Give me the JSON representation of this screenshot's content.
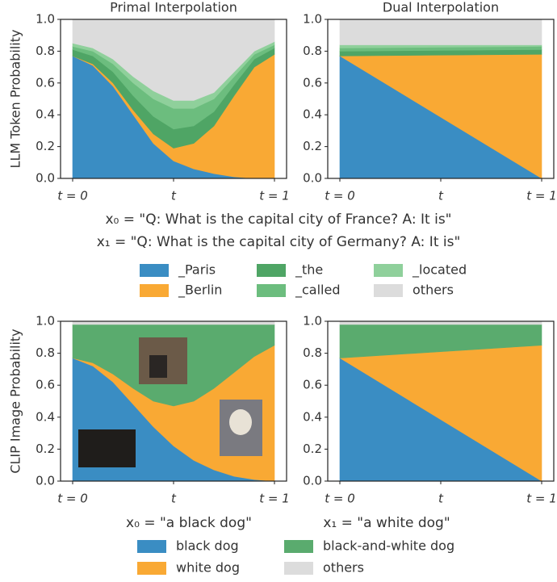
{
  "chart_data": [
    {
      "type": "area",
      "title": "Primal Interpolation",
      "ylabel": "LLM Token Probability",
      "legend": "below",
      "x": [
        0,
        0.1,
        0.2,
        0.3,
        0.4,
        0.5,
        0.6,
        0.7,
        0.8,
        0.9,
        1
      ],
      "xlim": [
        -0.06,
        1.06
      ],
      "ylim": [
        0,
        1
      ],
      "xticks": [
        {
          "value": 0,
          "label": "t = 0"
        },
        {
          "value": 0.5,
          "label": "t"
        },
        {
          "value": 1,
          "label": "t = 1"
        }
      ],
      "yticks": [
        {
          "value": 0,
          "label": "0.0"
        },
        {
          "value": 0.2,
          "label": "0.2"
        },
        {
          "value": 0.4,
          "label": "0.4"
        },
        {
          "value": 0.6,
          "label": "0.6"
        },
        {
          "value": 0.8,
          "label": "0.8"
        },
        {
          "value": 1,
          "label": "1.0"
        }
      ],
      "series": [
        {
          "name": "_Paris",
          "color": "#3a8dc3",
          "values": [
            0.77,
            0.71,
            0.58,
            0.4,
            0.22,
            0.11,
            0.06,
            0.03,
            0.01,
            0.0,
            0.0
          ]
        },
        {
          "name": "_Berlin",
          "color": "#f9a934",
          "values": [
            0.0,
            0.01,
            0.02,
            0.03,
            0.06,
            0.08,
            0.16,
            0.3,
            0.51,
            0.7,
            0.78
          ]
        },
        {
          "name": "_the",
          "color": "#4fa565",
          "values": [
            0.04,
            0.05,
            0.07,
            0.09,
            0.11,
            0.12,
            0.11,
            0.09,
            0.07,
            0.05,
            0.04
          ]
        },
        {
          "name": "_called",
          "color": "#6cbd7e",
          "values": [
            0.02,
            0.03,
            0.05,
            0.08,
            0.11,
            0.13,
            0.11,
            0.08,
            0.05,
            0.03,
            0.02
          ]
        },
        {
          "name": "_located",
          "color": "#8fd09b",
          "values": [
            0.02,
            0.02,
            0.03,
            0.04,
            0.05,
            0.05,
            0.05,
            0.04,
            0.03,
            0.02,
            0.02
          ]
        },
        {
          "name": "others",
          "color": "#dcdcdc",
          "values": [
            0.15,
            0.18,
            0.25,
            0.36,
            0.45,
            0.51,
            0.51,
            0.46,
            0.33,
            0.2,
            0.14
          ]
        }
      ]
    },
    {
      "type": "area",
      "title": "Dual Interpolation",
      "x": [
        0,
        1
      ],
      "xlim": [
        -0.06,
        1.06
      ],
      "ylim": [
        0,
        1
      ],
      "xticks": [
        {
          "value": 0,
          "label": "t = 0"
        },
        {
          "value": 0.5,
          "label": "t"
        },
        {
          "value": 1,
          "label": "t = 1"
        }
      ],
      "yticks": [
        {
          "value": 0,
          "label": "0.0"
        },
        {
          "value": 0.2,
          "label": "0.2"
        },
        {
          "value": 0.4,
          "label": "0.4"
        },
        {
          "value": 0.6,
          "label": "0.6"
        },
        {
          "value": 0.8,
          "label": "0.8"
        },
        {
          "value": 1,
          "label": "1.0"
        }
      ],
      "series": [
        {
          "name": "_Paris",
          "color": "#3a8dc3",
          "values": [
            0.77,
            0.0
          ]
        },
        {
          "name": "_Berlin",
          "color": "#f9a934",
          "values": [
            0.0,
            0.78
          ]
        },
        {
          "name": "_the",
          "color": "#4fa565",
          "values": [
            0.03,
            0.03
          ]
        },
        {
          "name": "_called",
          "color": "#6cbd7e",
          "values": [
            0.02,
            0.02
          ]
        },
        {
          "name": "_located",
          "color": "#8fd09b",
          "values": [
            0.02,
            0.01
          ]
        },
        {
          "name": "others",
          "color": "#dcdcdc",
          "values": [
            0.16,
            0.16
          ]
        }
      ]
    },
    {
      "type": "area",
      "ylabel": "CLIP Image Probability",
      "legend": "below",
      "x": [
        0,
        0.1,
        0.2,
        0.3,
        0.4,
        0.5,
        0.6,
        0.7,
        0.8,
        0.9,
        1
      ],
      "xlim": [
        -0.06,
        1.06
      ],
      "ylim": [
        0,
        1
      ],
      "xticks": [
        {
          "value": 0,
          "label": "t = 0"
        },
        {
          "value": 0.5,
          "label": "t"
        },
        {
          "value": 1,
          "label": "t = 1"
        }
      ],
      "yticks": [
        {
          "value": 0,
          "label": "0.0"
        },
        {
          "value": 0.2,
          "label": "0.2"
        },
        {
          "value": 0.4,
          "label": "0.4"
        },
        {
          "value": 0.6,
          "label": "0.6"
        },
        {
          "value": 0.8,
          "label": "0.8"
        },
        {
          "value": 1,
          "label": "1.0"
        }
      ],
      "series": [
        {
          "name": "black dog",
          "color": "#3a8dc3",
          "values": [
            0.77,
            0.72,
            0.62,
            0.48,
            0.34,
            0.22,
            0.13,
            0.07,
            0.03,
            0.01,
            0.0
          ]
        },
        {
          "name": "white dog",
          "color": "#f9a934",
          "values": [
            0.0,
            0.02,
            0.05,
            0.1,
            0.16,
            0.25,
            0.37,
            0.51,
            0.65,
            0.77,
            0.85
          ]
        },
        {
          "name": "black-and-white dog",
          "color": "#5aab6e",
          "values": [
            0.21,
            0.24,
            0.31,
            0.4,
            0.48,
            0.51,
            0.48,
            0.4,
            0.3,
            0.2,
            0.13
          ]
        },
        {
          "name": "others",
          "color": "#dcdcdc",
          "values": [
            0.02,
            0.02,
            0.02,
            0.02,
            0.02,
            0.02,
            0.02,
            0.02,
            0.02,
            0.02,
            0.02
          ]
        }
      ]
    },
    {
      "type": "area",
      "x": [
        0,
        1
      ],
      "xlim": [
        -0.06,
        1.06
      ],
      "ylim": [
        0,
        1
      ],
      "xticks": [
        {
          "value": 0,
          "label": "t = 0"
        },
        {
          "value": 0.5,
          "label": "t"
        },
        {
          "value": 1,
          "label": "t = 1"
        }
      ],
      "yticks": [
        {
          "value": 0,
          "label": "0.0"
        },
        {
          "value": 0.2,
          "label": "0.2"
        },
        {
          "value": 0.4,
          "label": "0.4"
        },
        {
          "value": 0.6,
          "label": "0.6"
        },
        {
          "value": 0.8,
          "label": "0.8"
        },
        {
          "value": 1,
          "label": "1.0"
        }
      ],
      "series": [
        {
          "name": "black dog",
          "color": "#3a8dc3",
          "values": [
            0.77,
            0.0
          ]
        },
        {
          "name": "white dog",
          "color": "#f9a934",
          "values": [
            0.0,
            0.85
          ]
        },
        {
          "name": "black-and-white dog",
          "color": "#5aab6e",
          "values": [
            0.21,
            0.13
          ]
        },
        {
          "name": "others",
          "color": "#dcdcdc",
          "values": [
            0.02,
            0.02
          ]
        }
      ]
    }
  ],
  "captions": [
    "x₀ = \"Q: What is the capital city of France? A: It is\"",
    "x₁ = \"Q: What is the capital city of Germany? A: It is\"",
    "x₀ = \"a black dog\"",
    "x₁ = \"a white dog\""
  ]
}
